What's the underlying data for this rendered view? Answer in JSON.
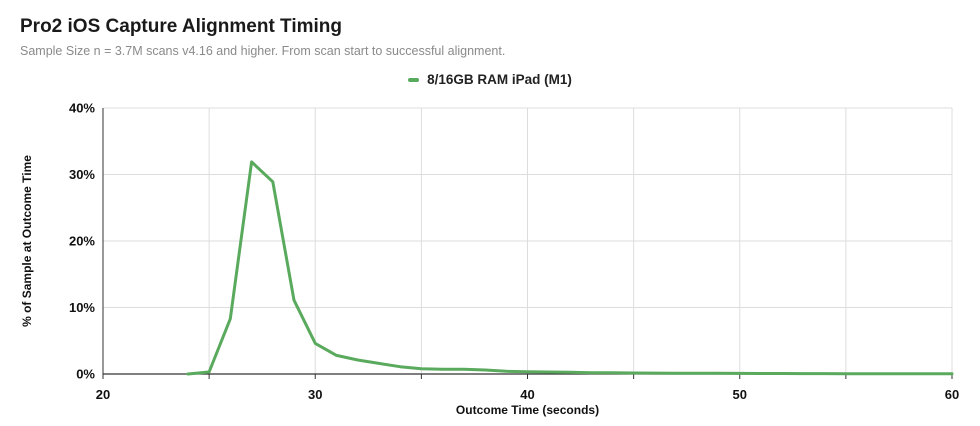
{
  "header": {
    "title": "Pro2 iOS Capture Alignment Timing",
    "subtitle": "Sample Size n = 3.7M scans v4.16 and higher. From scan start to successful alignment."
  },
  "chart_data": {
    "type": "line",
    "xlabel": "Outcome Time (seconds)",
    "ylabel": "% of Sample at Outcome Time",
    "xlim": [
      20,
      60
    ],
    "ylim": [
      0,
      40
    ],
    "x_ticks": [
      "20",
      "30",
      "40",
      "50",
      "60"
    ],
    "x_tick_values": [
      20,
      30,
      40,
      50,
      60
    ],
    "y_ticks": [
      "0%",
      "10%",
      "20%",
      "30%",
      "40%"
    ],
    "y_tick_values": [
      0,
      10,
      20,
      30,
      40
    ],
    "x_minor_grid": [
      25,
      35,
      45,
      55
    ],
    "grid": true,
    "legend_position": "top-center",
    "series": [
      {
        "name": "8/16GB RAM iPad (M1)",
        "color": "#5aaa5e",
        "x": [
          24,
          25,
          26,
          27,
          28,
          29,
          30,
          31,
          32,
          33,
          34,
          35,
          36,
          37,
          38,
          39,
          40,
          41,
          42,
          43,
          44,
          45,
          46,
          47,
          48,
          49,
          50,
          51,
          52,
          53,
          54,
          55,
          56,
          57,
          58,
          59,
          60
        ],
        "y": [
          0.0,
          0.3,
          8.3,
          31.9,
          28.9,
          11.1,
          4.6,
          2.8,
          2.1,
          1.6,
          1.1,
          0.8,
          0.7,
          0.7,
          0.6,
          0.4,
          0.35,
          0.3,
          0.25,
          0.2,
          0.18,
          0.15,
          0.13,
          0.12,
          0.1,
          0.1,
          0.09,
          0.08,
          0.07,
          0.06,
          0.06,
          0.05,
          0.05,
          0.04,
          0.04,
          0.03,
          0.03
        ]
      }
    ]
  }
}
